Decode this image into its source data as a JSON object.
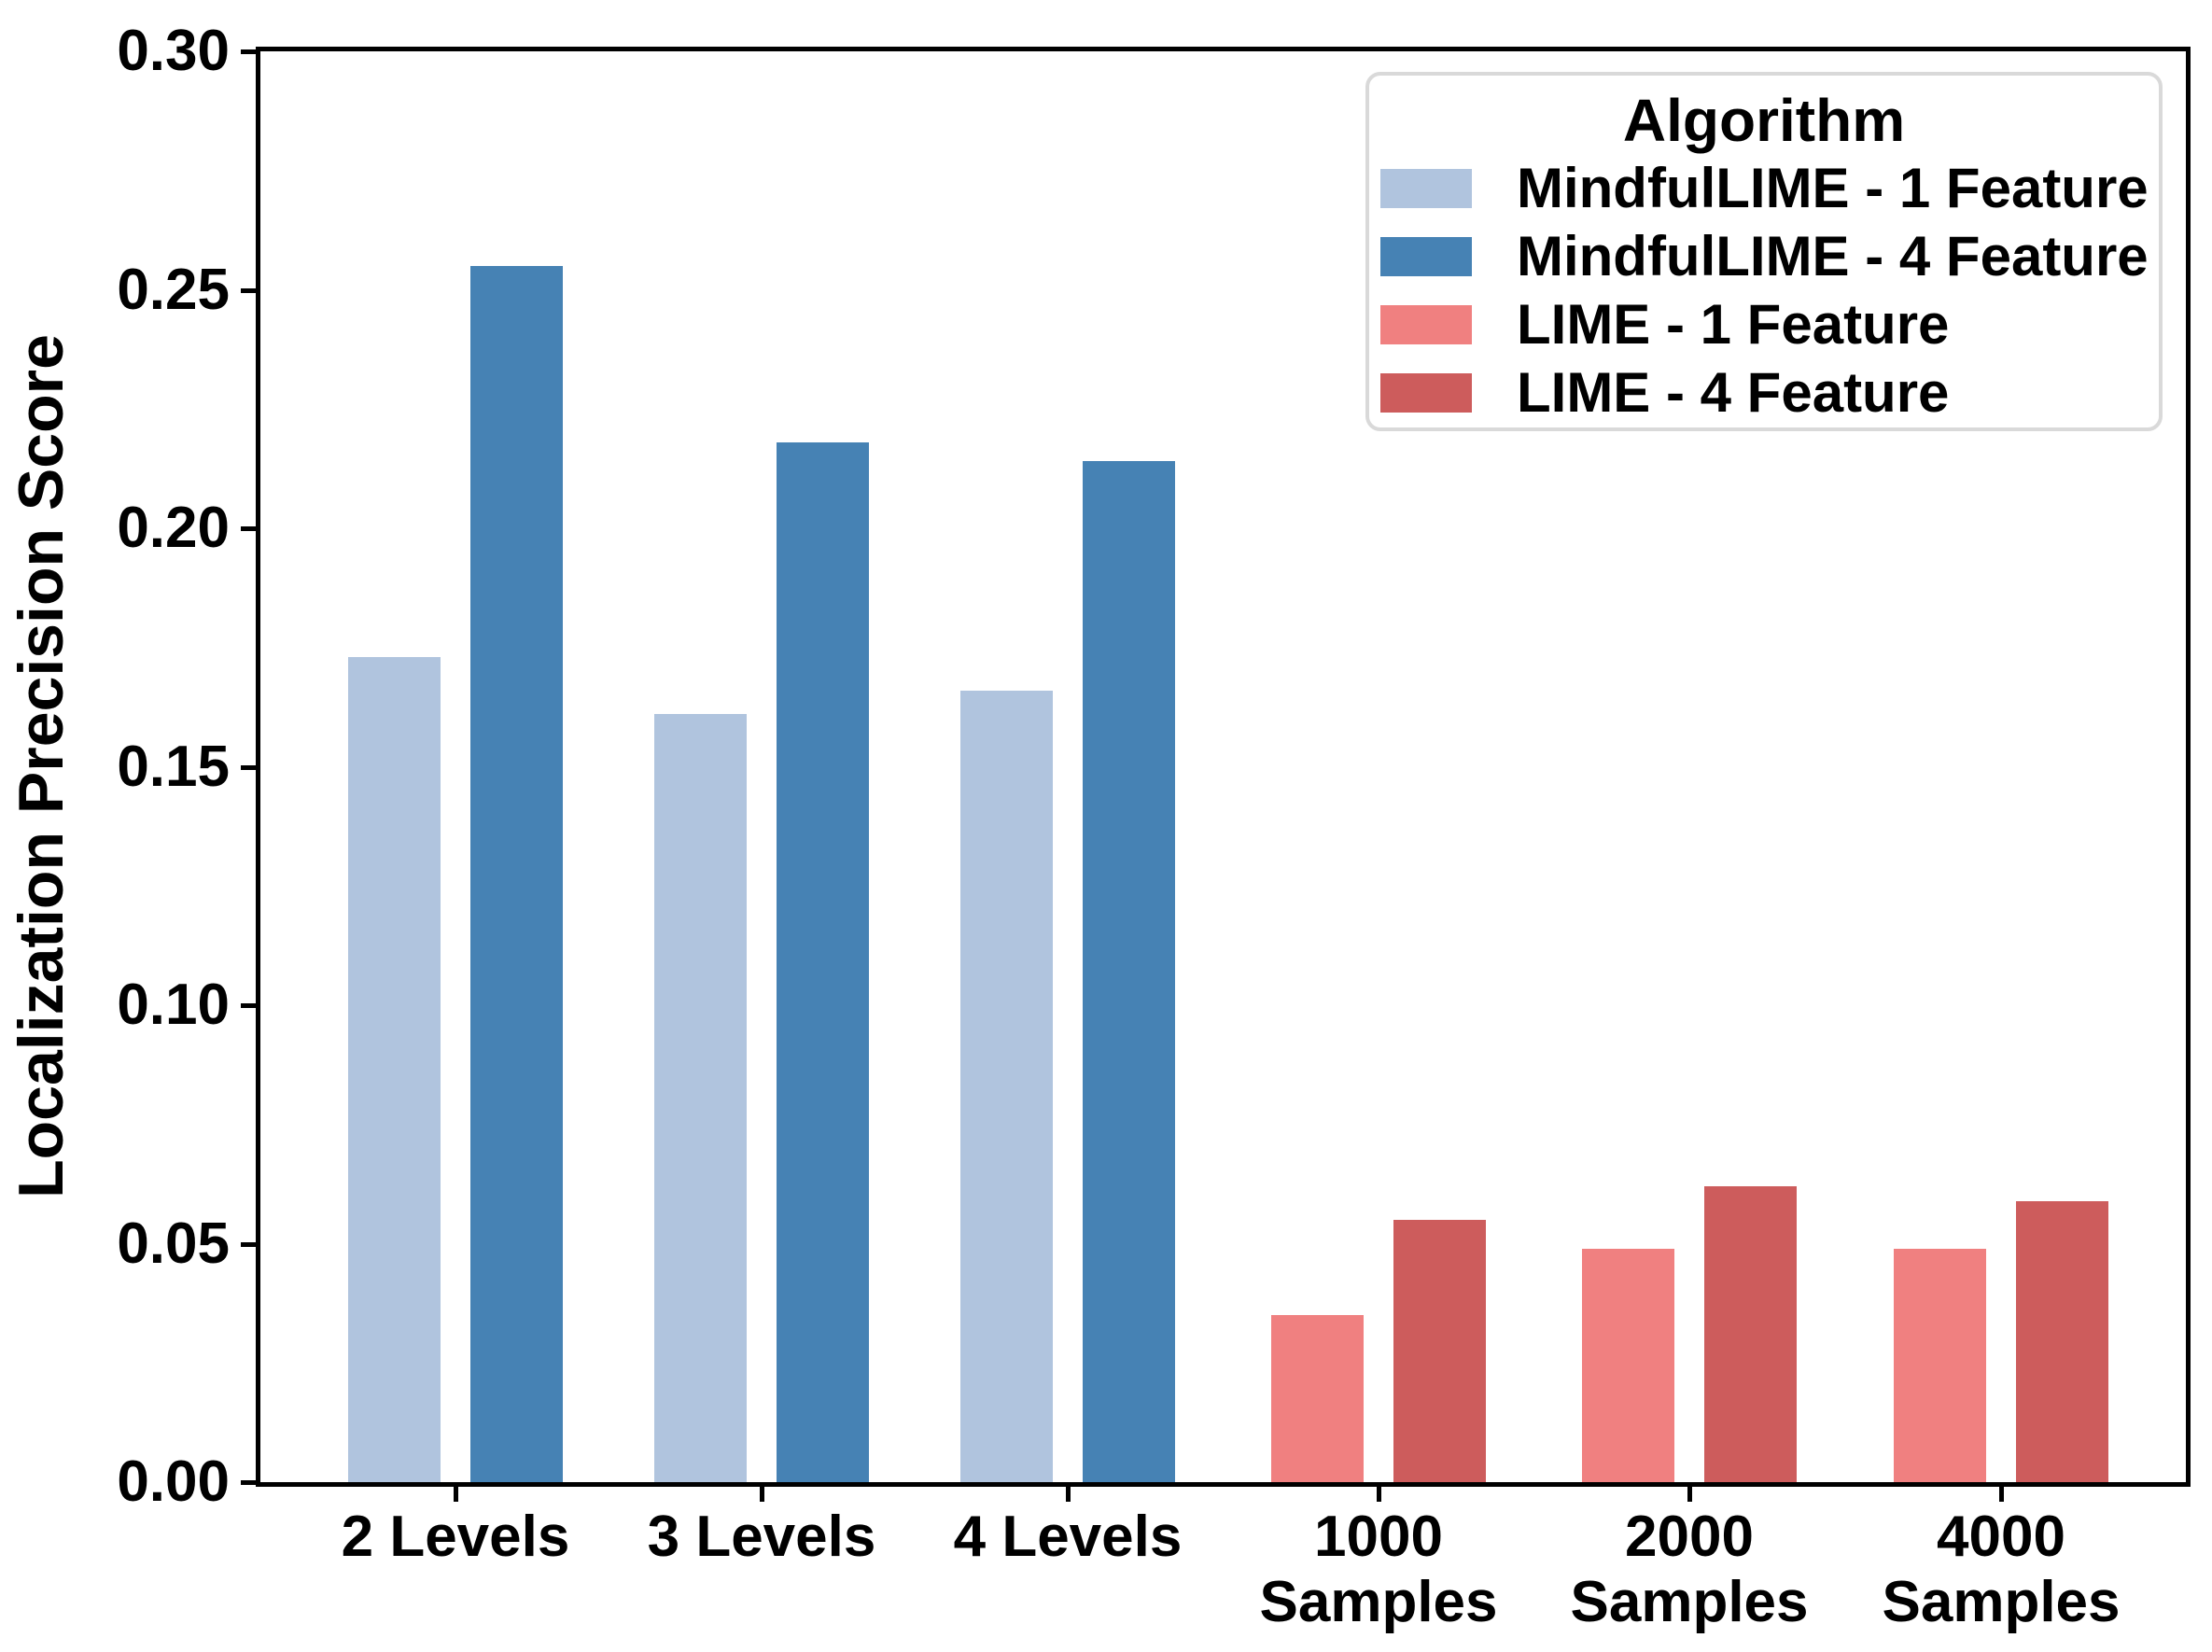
{
  "chart_data": {
    "type": "bar",
    "title": "",
    "xlabel": "",
    "ylabel": "Localization Precision Score",
    "ylim": [
      0,
      0.3
    ],
    "ytick_values": [
      0,
      0.05,
      0.1,
      0.15,
      0.2,
      0.25,
      0.3
    ],
    "ytick_labels": [
      "0.00",
      "0.05",
      "0.10",
      "0.15",
      "0.20",
      "0.25",
      "0.30"
    ],
    "categories": [
      "2 Levels",
      "3 Levels",
      "4 Levels",
      "1000\nSamples",
      "2000\nSamples",
      "4000\nSamples"
    ],
    "grid": false,
    "legend_position": "upper right",
    "legend_title": "Algorithm",
    "series": [
      {
        "name": "MindfulLIME - 1 Feature",
        "color": "#B0C4DE",
        "values": [
          0.173,
          0.161,
          0.166,
          null,
          null,
          null
        ]
      },
      {
        "name": "MindfulLIME - 4 Feature",
        "color": "#4682B4",
        "values": [
          0.255,
          0.218,
          0.214,
          null,
          null,
          null
        ]
      },
      {
        "name": "LIME - 1 Feature",
        "color": "#F08080",
        "values": [
          null,
          null,
          null,
          0.035,
          0.049,
          0.049
        ]
      },
      {
        "name": "LIME - 4 Feature",
        "color": "#CD5C5C",
        "values": [
          null,
          null,
          null,
          0.055,
          0.062,
          0.059
        ]
      }
    ],
    "axis_color": "#000000",
    "text_color": "#000000"
  }
}
